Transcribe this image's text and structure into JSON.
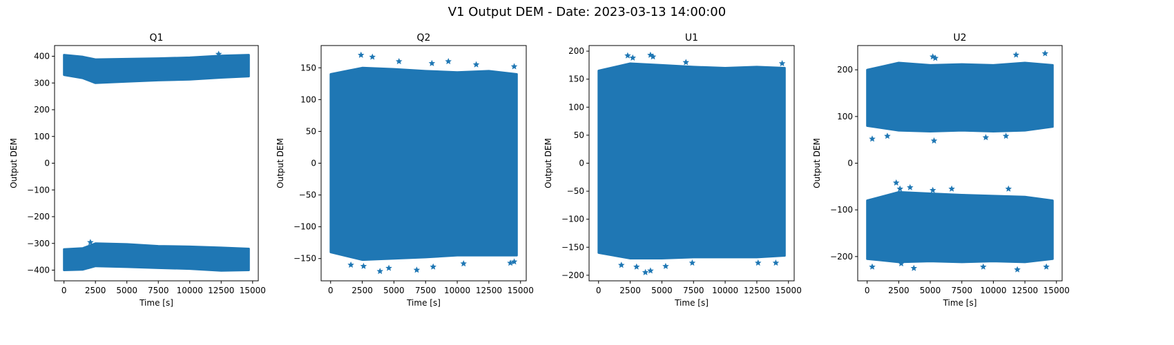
{
  "figure": {
    "title": "V1 Output DEM - Date: 2023-03-13 14:00:00",
    "marker_color": "#1f77b4",
    "marker": "star"
  },
  "chart_data": [
    {
      "type": "scatter",
      "title": "Q1",
      "xlabel": "Time [s]",
      "ylabel": "Output DEM",
      "xlim": [
        -750,
        15450
      ],
      "ylim": [
        -440,
        440
      ],
      "xticks": [
        0,
        2500,
        5000,
        7500,
        10000,
        12500,
        15000
      ],
      "yticks": [
        -400,
        -300,
        -200,
        -100,
        0,
        100,
        200,
        300,
        400
      ],
      "x_range": [
        0,
        14700
      ],
      "bands": [
        {
          "name": "upper",
          "top": [
            [
              0,
              405
            ],
            [
              1500,
              398
            ],
            [
              2500,
              388
            ],
            [
              5000,
              390
            ],
            [
              7500,
              392
            ],
            [
              10000,
              395
            ],
            [
              12500,
              402
            ],
            [
              14700,
              405
            ]
          ],
          "bottom": [
            [
              0,
              330
            ],
            [
              1500,
              318
            ],
            [
              2500,
              300
            ],
            [
              5000,
              305
            ],
            [
              7500,
              310
            ],
            [
              10000,
              313
            ],
            [
              12500,
              320
            ],
            [
              14700,
              325
            ]
          ]
        },
        {
          "name": "lower",
          "top": [
            [
              0,
              -322
            ],
            [
              1500,
              -318
            ],
            [
              2500,
              -300
            ],
            [
              5000,
              -303
            ],
            [
              7500,
              -310
            ],
            [
              10000,
              -312
            ],
            [
              12500,
              -316
            ],
            [
              14700,
              -320
            ]
          ],
          "bottom": [
            [
              0,
              -400
            ],
            [
              1500,
              -398
            ],
            [
              2500,
              -385
            ],
            [
              5000,
              -388
            ],
            [
              7500,
              -392
            ],
            [
              10000,
              -395
            ],
            [
              12500,
              -402
            ],
            [
              14700,
              -400
            ]
          ]
        }
      ],
      "outliers": [
        [
          12300,
          408
        ],
        [
          2100,
          -296
        ]
      ]
    },
    {
      "type": "scatter",
      "title": "Q2",
      "xlabel": "Time [s]",
      "ylabel": "Output DEM",
      "xlim": [
        -750,
        15450
      ],
      "ylim": [
        -185,
        185
      ],
      "xticks": [
        0,
        2500,
        5000,
        7500,
        10000,
        12500,
        15000
      ],
      "yticks": [
        -150,
        -100,
        -50,
        0,
        50,
        100,
        150
      ],
      "x_range": [
        0,
        14700
      ],
      "bands": [
        {
          "name": "main",
          "top": [
            [
              0,
              140
            ],
            [
              2500,
              150
            ],
            [
              5000,
              148
            ],
            [
              7500,
              145
            ],
            [
              10000,
              143
            ],
            [
              12500,
              145
            ],
            [
              14700,
              140
            ]
          ],
          "bottom": [
            [
              0,
              -140
            ],
            [
              2500,
              -152
            ],
            [
              5000,
              -150
            ],
            [
              7500,
              -148
            ],
            [
              10000,
              -145
            ],
            [
              12500,
              -145
            ],
            [
              14700,
              -145
            ]
          ]
        }
      ],
      "outliers": [
        [
          2400,
          170
        ],
        [
          3300,
          167
        ],
        [
          5400,
          160
        ],
        [
          8000,
          157
        ],
        [
          9300,
          160
        ],
        [
          11500,
          155
        ],
        [
          14500,
          152
        ],
        [
          1600,
          -160
        ],
        [
          2600,
          -162
        ],
        [
          3900,
          -170
        ],
        [
          4600,
          -165
        ],
        [
          6800,
          -168
        ],
        [
          8100,
          -163
        ],
        [
          10500,
          -158
        ],
        [
          14200,
          -157
        ],
        [
          14500,
          -155
        ]
      ]
    },
    {
      "type": "scatter",
      "title": "U1",
      "xlabel": "Time [s]",
      "ylabel": "Output DEM",
      "xlim": [
        -750,
        15450
      ],
      "ylim": [
        -210,
        210
      ],
      "xticks": [
        0,
        2500,
        5000,
        7500,
        10000,
        12500,
        15000
      ],
      "yticks": [
        -200,
        -150,
        -100,
        -50,
        0,
        50,
        100,
        150,
        200
      ],
      "x_range": [
        0,
        14700
      ],
      "bands": [
        {
          "name": "main",
          "top": [
            [
              0,
              165
            ],
            [
              2500,
              178
            ],
            [
              5000,
              175
            ],
            [
              7500,
              172
            ],
            [
              10000,
              170
            ],
            [
              12500,
              172
            ],
            [
              14700,
              170
            ]
          ],
          "bottom": [
            [
              0,
              -160
            ],
            [
              2500,
              -170
            ],
            [
              5000,
              -170
            ],
            [
              7500,
              -168
            ],
            [
              10000,
              -168
            ],
            [
              12500,
              -168
            ],
            [
              14700,
              -165
            ]
          ]
        }
      ],
      "outliers": [
        [
          2300,
          192
        ],
        [
          2700,
          188
        ],
        [
          4100,
          193
        ],
        [
          4300,
          190
        ],
        [
          6900,
          180
        ],
        [
          14500,
          178
        ],
        [
          1800,
          -182
        ],
        [
          3000,
          -185
        ],
        [
          3700,
          -195
        ],
        [
          4100,
          -192
        ],
        [
          5300,
          -184
        ],
        [
          7400,
          -178
        ],
        [
          12600,
          -178
        ],
        [
          14000,
          -178
        ]
      ]
    },
    {
      "type": "scatter",
      "title": "U2",
      "xlabel": "Time [s]",
      "ylabel": "Output DEM",
      "xlim": [
        -750,
        15450
      ],
      "ylim": [
        -252,
        252
      ],
      "xticks": [
        0,
        2500,
        5000,
        7500,
        10000,
        12500,
        15000
      ],
      "yticks": [
        -200,
        -100,
        0,
        100,
        200
      ],
      "x_range": [
        0,
        14700
      ],
      "bands": [
        {
          "name": "upper",
          "top": [
            [
              0,
              200
            ],
            [
              2500,
              215
            ],
            [
              5000,
              210
            ],
            [
              7500,
              212
            ],
            [
              10000,
              210
            ],
            [
              12500,
              215
            ],
            [
              14700,
              210
            ]
          ],
          "bottom": [
            [
              0,
              80
            ],
            [
              2500,
              70
            ],
            [
              5000,
              68
            ],
            [
              7500,
              70
            ],
            [
              10000,
              68
            ],
            [
              12500,
              70
            ],
            [
              14700,
              78
            ]
          ]
        },
        {
          "name": "lower",
          "top": [
            [
              0,
              -80
            ],
            [
              2500,
              -62
            ],
            [
              5000,
              -65
            ],
            [
              7500,
              -68
            ],
            [
              10000,
              -70
            ],
            [
              12500,
              -72
            ],
            [
              14700,
              -80
            ]
          ],
          "bottom": [
            [
              0,
              -205
            ],
            [
              2500,
              -212
            ],
            [
              5000,
              -210
            ],
            [
              7500,
              -212
            ],
            [
              10000,
              -210
            ],
            [
              12500,
              -212
            ],
            [
              14700,
              -205
            ]
          ]
        }
      ],
      "outliers": [
        [
          5200,
          228
        ],
        [
          5400,
          225
        ],
        [
          11800,
          232
        ],
        [
          14100,
          235
        ],
        [
          400,
          52
        ],
        [
          1600,
          58
        ],
        [
          5300,
          48
        ],
        [
          9400,
          55
        ],
        [
          11000,
          58
        ],
        [
          2300,
          -42
        ],
        [
          2600,
          -55
        ],
        [
          3400,
          -52
        ],
        [
          5200,
          -58
        ],
        [
          6700,
          -55
        ],
        [
          11200,
          -55
        ],
        [
          400,
          -222
        ],
        [
          2700,
          -215
        ],
        [
          3700,
          -225
        ],
        [
          9200,
          -222
        ],
        [
          11900,
          -228
        ],
        [
          14200,
          -222
        ]
      ]
    }
  ]
}
